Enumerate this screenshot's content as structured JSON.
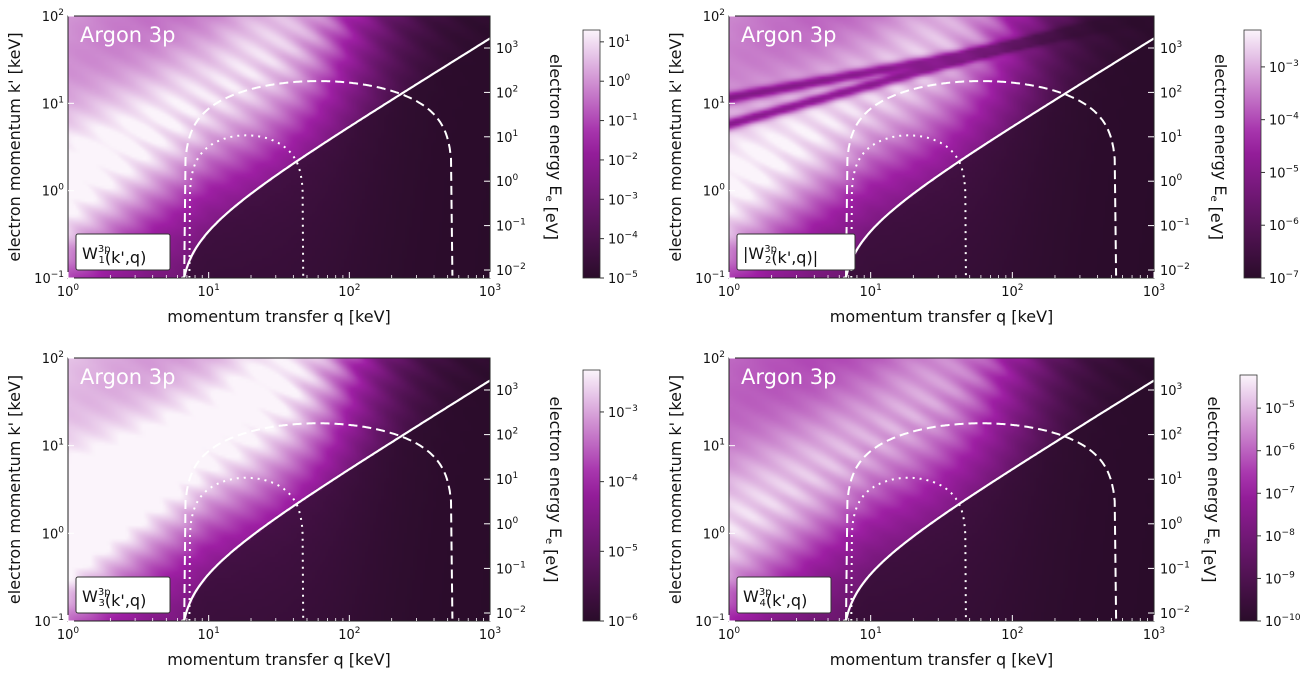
{
  "chart_data": [
    {
      "type": "heatmap",
      "title": "Argon 3p",
      "legend_label": "W_1^{3p}(k',q)",
      "xlabel": "momentum transfer q [keV]",
      "ylabel": "electron momentum k' [keV]",
      "y2label": "electron energy E_e [eV]",
      "xscale": "log",
      "yscale": "log",
      "xlim": [
        1,
        1000
      ],
      "ylim": [
        0.1,
        100
      ],
      "x_ticks": [
        "10^0",
        "10^1",
        "10^2",
        "10^3"
      ],
      "y_ticks": [
        "10^-1",
        "10^0",
        "10^1",
        "10^2"
      ],
      "y2_ticks": [
        "10^-2",
        "10^-1",
        "10^0",
        "10^1",
        "10^2",
        "10^3"
      ],
      "colorbar_ticks": [
        "10^-5",
        "10^-4",
        "10^-3",
        "10^-2",
        "10^-1",
        "10^0",
        "10^1"
      ],
      "colorbar_range": [
        1e-05,
        20
      ],
      "peak_intensity": 0.85,
      "boundaries": [
        "solid",
        "dashed",
        "dotted"
      ],
      "colors": {
        "low": "#2a0c2a",
        "mid": "#9e1fa4",
        "high": "#fbf4fb"
      }
    },
    {
      "type": "heatmap",
      "title": "Argon 3p",
      "legend_label": "|W_2^{3p}(k',q)|",
      "xlabel": "momentum transfer q [keV]",
      "ylabel": "electron momentum k' [keV]",
      "y2label": "electron energy E_e [eV]",
      "xscale": "log",
      "yscale": "log",
      "xlim": [
        1,
        1000
      ],
      "ylim": [
        0.1,
        100
      ],
      "x_ticks": [
        "10^0",
        "10^1",
        "10^2",
        "10^3"
      ],
      "y_ticks": [
        "10^-1",
        "10^0",
        "10^1",
        "10^2"
      ],
      "y2_ticks": [
        "10^-2",
        "10^-1",
        "10^0",
        "10^1",
        "10^2",
        "10^3"
      ],
      "colorbar_ticks": [
        "10^-7",
        "10^-6",
        "10^-5",
        "10^-4",
        "10^-3"
      ],
      "colorbar_range": [
        1e-07,
        0.005
      ],
      "peak_intensity": 0.82,
      "boundaries": [
        "solid",
        "dashed",
        "dotted"
      ],
      "colors": {
        "low": "#2a0c2a",
        "mid": "#9e1fa4",
        "high": "#fbf4fb"
      }
    },
    {
      "type": "heatmap",
      "title": "Argon 3p",
      "legend_label": "W_3^{3p}(k',q)",
      "xlabel": "momentum transfer q [keV]",
      "ylabel": "electron momentum k' [keV]",
      "y2label": "electron energy E_e [eV]",
      "xscale": "log",
      "yscale": "log",
      "xlim": [
        1,
        1000
      ],
      "ylim": [
        0.1,
        100
      ],
      "x_ticks": [
        "10^0",
        "10^1",
        "10^2",
        "10^3"
      ],
      "y_ticks": [
        "10^-1",
        "10^0",
        "10^1",
        "10^2"
      ],
      "y2_ticks": [
        "10^-2",
        "10^-1",
        "10^0",
        "10^1",
        "10^2",
        "10^3"
      ],
      "colorbar_ticks": [
        "10^-6",
        "10^-5",
        "10^-4",
        "10^-3"
      ],
      "colorbar_range": [
        1e-06,
        0.004
      ],
      "peak_intensity": 0.95,
      "boundaries": [
        "solid",
        "dashed",
        "dotted"
      ],
      "colors": {
        "low": "#2a0c2a",
        "mid": "#9e1fa4",
        "high": "#fbf4fb"
      }
    },
    {
      "type": "heatmap",
      "title": "Argon 3p",
      "legend_label": "W_4^{3p}(k',q)",
      "xlabel": "momentum transfer q [keV]",
      "ylabel": "electron momentum k' [keV]",
      "y2label": "electron energy E_e [eV]",
      "xscale": "log",
      "yscale": "log",
      "xlim": [
        1,
        1000
      ],
      "ylim": [
        0.1,
        100
      ],
      "x_ticks": [
        "10^0",
        "10^1",
        "10^2",
        "10^3"
      ],
      "y_ticks": [
        "10^-1",
        "10^0",
        "10^1",
        "10^2"
      ],
      "y2_ticks": [
        "10^-2",
        "10^-1",
        "10^0",
        "10^1",
        "10^2",
        "10^3"
      ],
      "colorbar_ticks": [
        "10^-10",
        "10^-9",
        "10^-8",
        "10^-7",
        "10^-6",
        "10^-5"
      ],
      "colorbar_range": [
        1e-10,
        6e-05
      ],
      "peak_intensity": 0.75,
      "boundaries": [
        "solid",
        "dashed",
        "dotted"
      ],
      "colors": {
        "low": "#2a0c2a",
        "mid": "#9e1fa4",
        "high": "#fbf4fb"
      }
    }
  ]
}
